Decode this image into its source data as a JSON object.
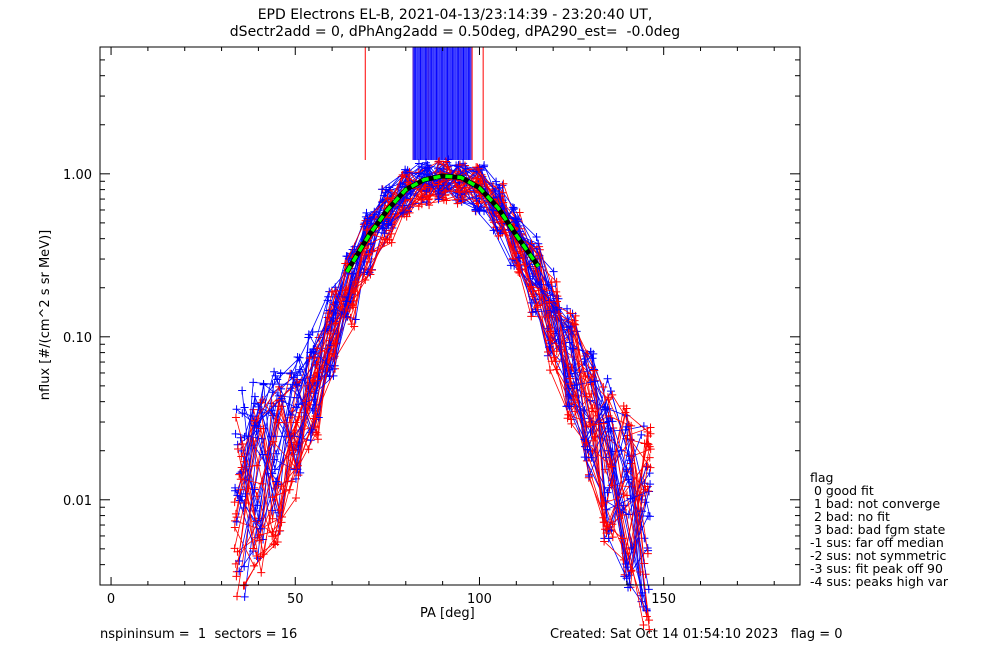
{
  "chart_data": {
    "type": "line",
    "title": "EPD Electrons EL-B, 2021-04-13/23:14:39 - 23:20:40 UT,",
    "subtitle": "dSectr2add = 0, dPhAng2add = 0.50deg, dPA290_est=  -0.0deg",
    "xlabel": "PA [deg]",
    "ylabel": "nflux [#/(cm^2 s sr MeV)]",
    "xlim": [
      -3,
      187
    ],
    "ylim": [
      0.003,
      6.0
    ],
    "yscale": "log",
    "xticks": [
      0,
      50,
      100,
      150
    ],
    "xtick_labels": [
      "0",
      "50",
      "100",
      "150"
    ],
    "yticks": [
      0.01,
      0.1,
      1.0
    ],
    "ytick_labels": [
      "0.01",
      "0.10",
      "1.00"
    ],
    "grid": false,
    "colors": {
      "blue": "#0000ff",
      "red": "#ff0000",
      "fit_green": "#00ff00",
      "fit_black": "#000000"
    },
    "series": [
      {
        "color": "blue",
        "x": [
          35,
          40,
          45,
          50,
          55,
          60,
          65,
          70,
          75,
          80,
          85,
          90,
          95,
          100,
          105,
          110,
          115,
          120,
          125,
          130,
          135,
          140,
          145
        ],
        "y": [
          0.012,
          0.015,
          0.02,
          0.03,
          0.05,
          0.11,
          0.22,
          0.38,
          0.58,
          0.78,
          0.88,
          0.92,
          0.9,
          0.82,
          0.62,
          0.4,
          0.24,
          0.13,
          0.07,
          0.035,
          0.018,
          0.011,
          0.008
        ]
      },
      {
        "color": "red",
        "x": [
          35,
          40,
          45,
          50,
          55,
          60,
          65,
          70,
          75,
          80,
          85,
          90,
          95,
          100,
          105,
          110,
          115,
          120,
          125,
          130,
          135,
          140,
          145
        ],
        "y": [
          0.01,
          0.012,
          0.016,
          0.025,
          0.045,
          0.1,
          0.2,
          0.35,
          0.55,
          0.75,
          0.85,
          0.9,
          0.88,
          0.8,
          0.6,
          0.38,
          0.22,
          0.12,
          0.065,
          0.032,
          0.016,
          0.01,
          0.007
        ]
      },
      {
        "name": "fit",
        "color": "fit_green",
        "style": "dashed",
        "x": [
          64,
          70,
          75,
          80,
          85,
          90,
          95,
          100,
          105,
          110,
          116
        ],
        "y": [
          0.25,
          0.42,
          0.6,
          0.8,
          0.92,
          0.97,
          0.95,
          0.82,
          0.62,
          0.42,
          0.27
        ]
      }
    ],
    "saturated_columns": {
      "blue_x": [
        82,
        83,
        84,
        85,
        86,
        87,
        88,
        89,
        90,
        91,
        92,
        93,
        94,
        95,
        96,
        97
      ],
      "red_x": [
        69,
        82,
        86,
        95,
        98,
        101
      ]
    },
    "legend_position": "lower-right outside plot"
  },
  "legend": {
    "title": "flag",
    "entries": [
      " 0 good fit",
      " 1 bad: not converge",
      " 2 bad: no fit",
      " 3 bad: bad fgm state",
      "-1 sus: far off median",
      "-2 sus: not symmetric",
      "-3 sus: fit peak off 90",
      "-4 sus: peaks high var"
    ]
  },
  "footer": {
    "left": "nspininsum =  1  sectors = 16",
    "right": "Created: Sat Oct 14 01:54:10 2023   flag = 0"
  }
}
